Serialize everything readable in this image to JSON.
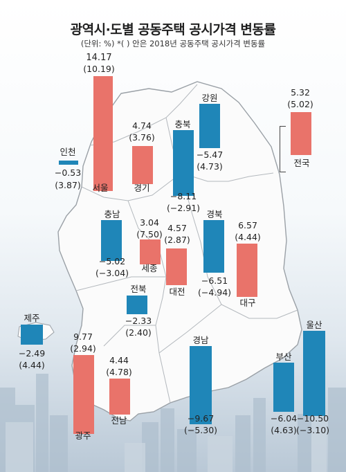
{
  "title": "광역시·도별 공동주택 공시가격 변동률",
  "subtitle": "(단위: %) *( ) 안은 2018년 공동주택 공시가격 변동률",
  "colors": {
    "rise": "#e9736a",
    "fall": "#1f86b8",
    "map_fill": "#fbfbfb",
    "map_stroke": "#9aa0a6"
  },
  "regions": [
    {
      "name": "서울",
      "value": "14.17",
      "prev": "(10.19)",
      "v": 14.17
    },
    {
      "name": "인천",
      "value": "−0.53",
      "prev": "(3.87)",
      "v": -0.53
    },
    {
      "name": "경기",
      "value": "4.74",
      "prev": "(3.76)",
      "v": 4.74
    },
    {
      "name": "충북",
      "value": "−8.11",
      "prev": "(−2.91)",
      "v": -8.11
    },
    {
      "name": "강원",
      "value": "−5.47",
      "prev": "(4.73)",
      "v": -5.47
    },
    {
      "name": "전국",
      "value": "5.32",
      "prev": "(5.02)",
      "v": 5.32
    },
    {
      "name": "충남",
      "value": "−5.02",
      "prev": "(−3.04)",
      "v": -5.02
    },
    {
      "name": "세종",
      "value": "3.04",
      "prev": "(7.50)",
      "v": 3.04
    },
    {
      "name": "대전",
      "value": "4.57",
      "prev": "(2.87)",
      "v": 4.57
    },
    {
      "name": "경북",
      "value": "−6.51",
      "prev": "(−4.94)",
      "v": -6.51
    },
    {
      "name": "대구",
      "value": "6.57",
      "prev": "(4.44)",
      "v": 6.57
    },
    {
      "name": "전북",
      "value": "−2.33",
      "prev": "(2.40)",
      "v": -2.33
    },
    {
      "name": "제주",
      "value": "−2.49",
      "prev": "(4.44)",
      "v": -2.49
    },
    {
      "name": "광주",
      "value": "9.77",
      "prev": "(2.94)",
      "v": 9.77
    },
    {
      "name": "전남",
      "value": "4.44",
      "prev": "(4.78)",
      "v": 4.44
    },
    {
      "name": "경남",
      "value": "−9.67",
      "prev": "(−5.30)",
      "v": -9.67
    },
    {
      "name": "부산",
      "value": "−6.04",
      "prev": "(4.63)",
      "v": -6.04
    },
    {
      "name": "울산",
      "value": "−10.50",
      "prev": "(−3.10)",
      "v": -10.5
    }
  ]
}
